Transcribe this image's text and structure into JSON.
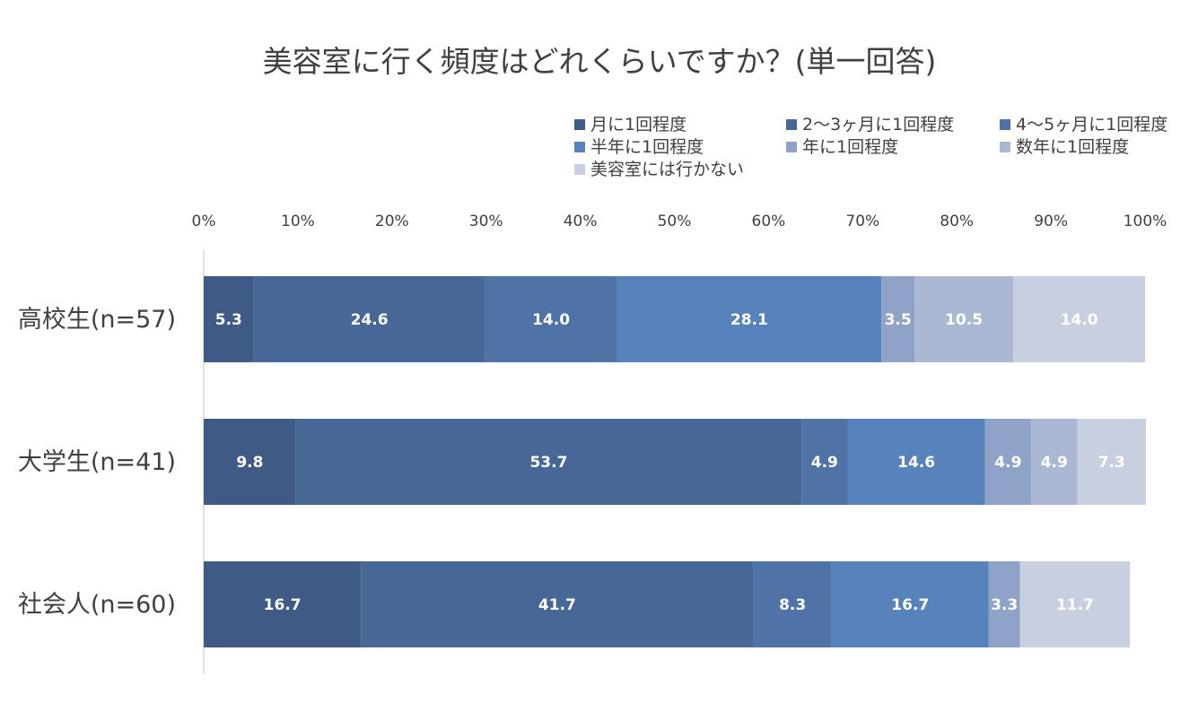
{
  "chart_data": {
    "type": "bar",
    "orientation": "horizontal",
    "stacked": true,
    "percent_stacked": true,
    "title": "美容室に行く頻度はどれくらいですか？(単一回答)",
    "categories": [
      "高校生(n=57)",
      "大学生(n=41)",
      "社会人(n=60)"
    ],
    "x_ticks": [
      "0%",
      "10%",
      "20%",
      "30%",
      "40%",
      "50%",
      "60%",
      "70%",
      "80%",
      "90%",
      "100%"
    ],
    "xlim": [
      0,
      100
    ],
    "legend_position": "top",
    "grid": false,
    "series": [
      {
        "name": "月に1回程度",
        "color": "#3f5a84",
        "values": [
          5.3,
          9.8,
          16.7
        ]
      },
      {
        "name": "2〜3ヶ月に1回程度",
        "color": "#476896",
        "values": [
          24.6,
          53.7,
          41.7
        ]
      },
      {
        "name": "4〜5ヶ月に1回程度",
        "color": "#4f73a6",
        "values": [
          14.0,
          4.9,
          8.3
        ]
      },
      {
        "name": "半年に1回程度",
        "color": "#5782bb",
        "values": [
          28.1,
          14.6,
          16.7
        ]
      },
      {
        "name": "年に1回程度",
        "color": "#8fa3c8",
        "values": [
          3.5,
          4.9,
          3.3
        ]
      },
      {
        "name": "数年に1回程度",
        "color": "#aab8d4",
        "values": [
          10.5,
          4.9,
          0
        ]
      },
      {
        "name": "美容室には行かない",
        "color": "#c7cfe1",
        "values": [
          14.0,
          7.3,
          11.7
        ]
      }
    ]
  }
}
